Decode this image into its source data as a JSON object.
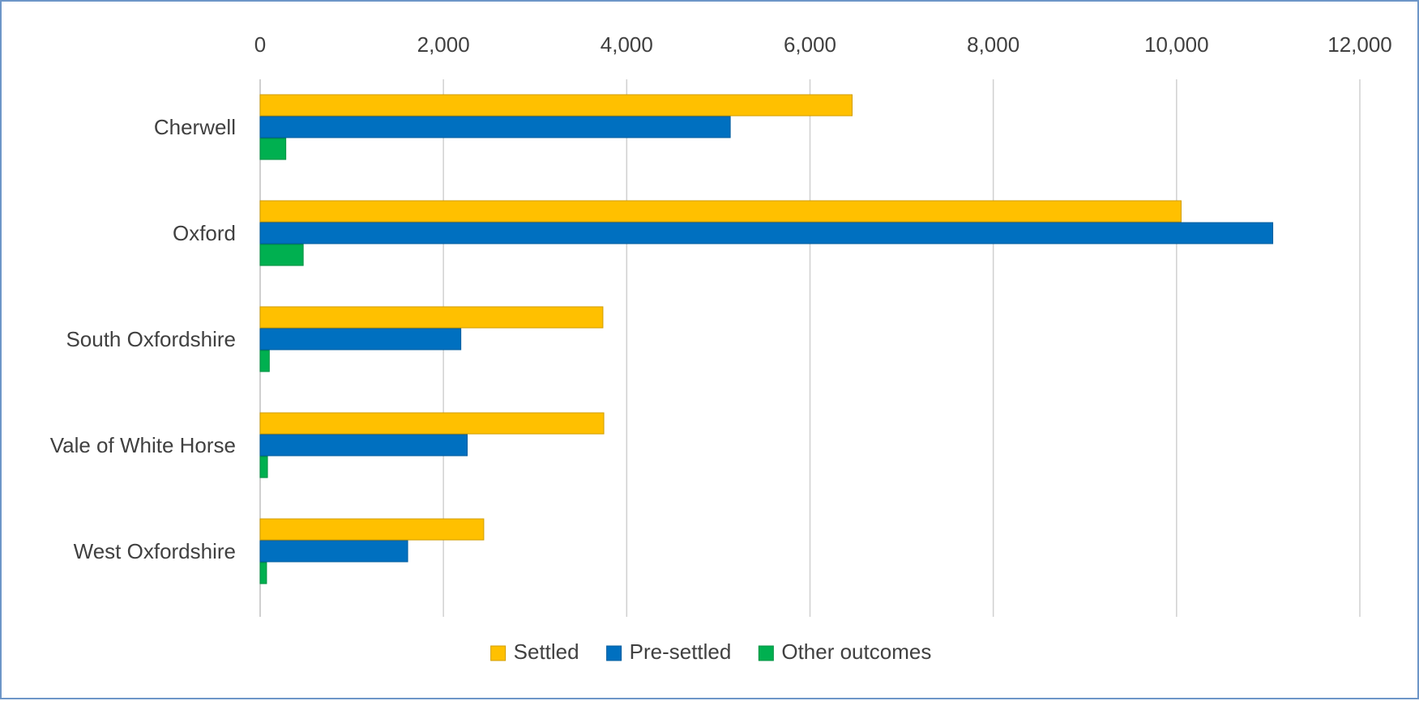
{
  "chart_data": {
    "type": "bar",
    "orientation": "horizontal",
    "title": "",
    "xlabel": "",
    "ylabel": "",
    "x_axis_position": "top",
    "xlim": [
      0,
      12000
    ],
    "x_ticks": [
      0,
      2000,
      4000,
      6000,
      8000,
      10000,
      12000
    ],
    "x_tick_labels": [
      "0",
      "2,000",
      "4,000",
      "6,000",
      "8,000",
      "10,000",
      "12,000"
    ],
    "grid": "vertical major gridlines",
    "legend": "bottom",
    "categories": [
      "Cherwell",
      "Oxford",
      "South Oxfordshire",
      "Vale of White Horse",
      "West Oxfordshire"
    ],
    "series": [
      {
        "name": "Settled",
        "color": "#ffc000",
        "values": [
          6460,
          10050,
          3740,
          3750,
          2440
        ]
      },
      {
        "name": "Pre-settled",
        "color": "#0070c0",
        "values": [
          5130,
          11050,
          2190,
          2260,
          1610
        ]
      },
      {
        "name": "Other outcomes",
        "color": "#00b050",
        "values": [
          280,
          470,
          100,
          80,
          70
        ]
      }
    ]
  }
}
